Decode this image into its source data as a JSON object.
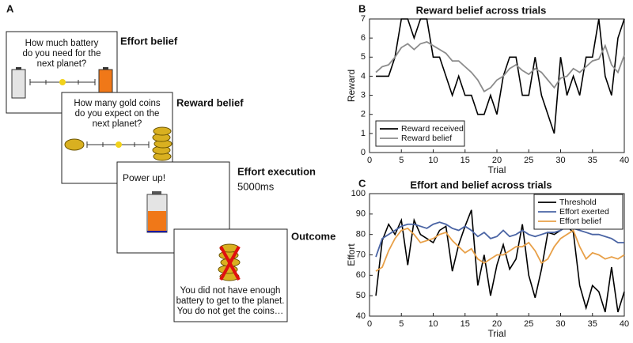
{
  "panel_a": {
    "label": "A",
    "cards": [
      {
        "stage": "Effort belief",
        "lines": [
          "How much battery",
          "do you need for the",
          "next planet?"
        ]
      },
      {
        "stage": "Reward belief",
        "lines": [
          "How many gold coins",
          "do you expect on the",
          "next planet?"
        ]
      },
      {
        "stage": "Effort execution",
        "duration": "5000ms",
        "lines": [
          "Power up!"
        ]
      },
      {
        "stage": "Outcome",
        "lines": [
          "You did not have enough",
          "battery to get to the planet.",
          "You do not get the coins…"
        ]
      }
    ]
  },
  "chart_data": [
    {
      "type": "line",
      "panel_label": "B",
      "title": "Reward belief across trials",
      "xlabel": "Trial",
      "ylabel": "Reward",
      "x": [
        1,
        2,
        3,
        4,
        5,
        6,
        7,
        8,
        9,
        10,
        11,
        12,
        13,
        14,
        15,
        16,
        17,
        18,
        19,
        20,
        21,
        22,
        23,
        24,
        25,
        26,
        27,
        28,
        29,
        30,
        31,
        32,
        33,
        34,
        35,
        36,
        37,
        38,
        39,
        40
      ],
      "series": [
        {
          "name": "Reward received",
          "color": "#000000",
          "values": [
            4,
            4,
            4,
            5,
            7,
            7,
            6,
            7,
            7,
            5,
            5,
            4,
            3,
            4,
            3,
            3,
            2,
            2,
            3,
            2,
            4,
            5,
            5,
            3,
            3,
            5,
            3,
            2,
            1,
            5,
            3,
            4,
            3,
            5,
            5,
            7,
            4,
            3,
            6,
            7
          ]
        },
        {
          "name": "Reward belief",
          "color": "#8c8c8c",
          "values": [
            4.2,
            4.5,
            4.6,
            5.0,
            5.5,
            5.7,
            5.4,
            5.7,
            5.8,
            5.6,
            5.4,
            5.2,
            4.8,
            4.8,
            4.5,
            4.2,
            3.8,
            3.2,
            3.4,
            3.8,
            4.0,
            4.4,
            4.6,
            4.3,
            4.1,
            4.4,
            4.2,
            3.8,
            3.4,
            3.9,
            4.0,
            4.4,
            4.2,
            4.5,
            4.8,
            4.9,
            5.6,
            4.6,
            4.2,
            5.1
          ]
        }
      ],
      "xlim": [
        0,
        40
      ],
      "xticks": [
        0,
        5,
        10,
        15,
        20,
        25,
        30,
        35,
        40
      ],
      "ylim": [
        0,
        7
      ],
      "yticks": [
        0,
        1,
        2,
        3,
        4,
        5,
        6,
        7
      ],
      "legend": "lower left"
    },
    {
      "type": "line",
      "panel_label": "C",
      "title": "Effort and belief across trials",
      "xlabel": "Trial",
      "ylabel": "Effort",
      "x": [
        1,
        2,
        3,
        4,
        5,
        6,
        7,
        8,
        9,
        10,
        11,
        12,
        13,
        14,
        15,
        16,
        17,
        18,
        19,
        20,
        21,
        22,
        23,
        24,
        25,
        26,
        27,
        28,
        29,
        30,
        31,
        32,
        33,
        34,
        35,
        36,
        37,
        38,
        39,
        40
      ],
      "series": [
        {
          "name": "Threshold",
          "color": "#000000",
          "values": [
            50,
            77,
            85,
            80,
            87,
            65,
            87,
            80,
            78,
            76,
            82,
            84,
            62,
            75,
            84,
            92,
            55,
            70,
            50,
            65,
            75,
            63,
            68,
            85,
            60,
            49,
            63,
            81,
            80,
            82,
            84,
            81,
            55,
            44,
            55,
            52,
            42,
            64,
            42,
            52
          ]
        },
        {
          "name": "Effort exerted",
          "color": "#4a64a4",
          "values": [
            69,
            78,
            80,
            82,
            84,
            85,
            85,
            84,
            83,
            85,
            86,
            85,
            83,
            82,
            84,
            82,
            79,
            81,
            78,
            79,
            82,
            79,
            80,
            82,
            80,
            79,
            80,
            81,
            81,
            82,
            84,
            83,
            82,
            81,
            80,
            80,
            79,
            78,
            76,
            76
          ]
        },
        {
          "name": "Effort belief",
          "color": "#e8a048",
          "values": [
            62,
            64,
            72,
            78,
            82,
            83,
            80,
            76,
            77,
            78,
            80,
            81,
            77,
            74,
            71,
            73,
            68,
            66,
            68,
            70,
            70,
            72,
            74,
            74,
            76,
            72,
            66,
            68,
            74,
            78,
            80,
            82,
            74,
            68,
            71,
            70,
            68,
            69,
            68,
            70
          ]
        }
      ],
      "xlim": [
        0,
        40
      ],
      "xticks": [
        0,
        5,
        10,
        15,
        20,
        25,
        30,
        35,
        40
      ],
      "ylim": [
        40,
        100
      ],
      "yticks": [
        40,
        50,
        60,
        70,
        80,
        90,
        100
      ],
      "legend": "upper right"
    }
  ]
}
